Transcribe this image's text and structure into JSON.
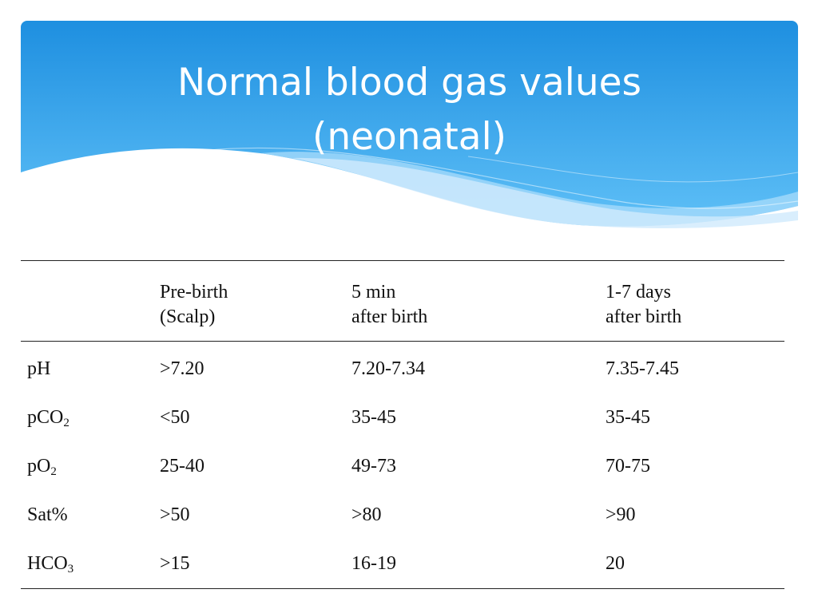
{
  "slide": {
    "title_line1": "Normal blood gas values",
    "title_line2": "(neonatal)",
    "colors": {
      "header_top": "#1e8fe0",
      "header_bottom": "#5fc0f7",
      "wave_light": "#a9dcfb"
    }
  },
  "table": {
    "headers": [
      {
        "line1": "",
        "line2": ""
      },
      {
        "line1": "Pre-birth",
        "line2": "(Scalp)"
      },
      {
        "line1": "5 min",
        "line2": "after birth"
      },
      {
        "line1": "1-7 days",
        "line2": "after birth"
      }
    ],
    "rows": [
      {
        "param": "pH",
        "param_sub": "",
        "pre_birth": ">7.20",
        "five_min": "7.20-7.34",
        "one_to_seven_days": "7.35-7.45"
      },
      {
        "param": "pCO",
        "param_sub": "2",
        "pre_birth": "<50",
        "five_min": "35-45",
        "one_to_seven_days": "35-45"
      },
      {
        "param": "pO",
        "param_sub": "2",
        "pre_birth": "25-40",
        "five_min": "49-73",
        "one_to_seven_days": "70-75"
      },
      {
        "param": "Sat%",
        "param_sub": "",
        "pre_birth": ">50",
        "five_min": ">80",
        "one_to_seven_days": ">90"
      },
      {
        "param": "HCO",
        "param_sub": "3",
        "pre_birth": ">15",
        "five_min": "16-19",
        "one_to_seven_days": "20"
      }
    ]
  }
}
